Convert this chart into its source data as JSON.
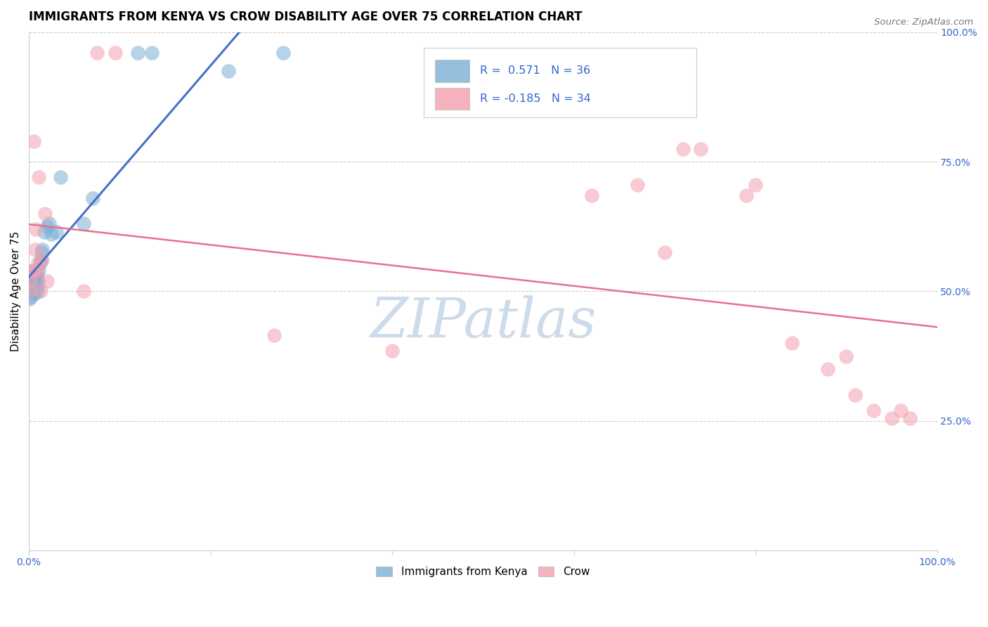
{
  "title": "IMMIGRANTS FROM KENYA VS CROW DISABILITY AGE OVER 75 CORRELATION CHART",
  "source": "Source: ZipAtlas.com",
  "ylabel": "Disability Age Over 75",
  "xlim": [
    0.0,
    1.0
  ],
  "ylim": [
    0.0,
    1.0
  ],
  "blue_color": "#7BAFD4",
  "pink_color": "#F4A0B0",
  "blue_line_color": "#4472C4",
  "pink_line_color": "#E87090",
  "tick_color": "#3366CC",
  "watermark_color": "#C8D8E8",
  "blue_x": [
    0.001,
    0.002,
    0.002,
    0.003,
    0.003,
    0.004,
    0.004,
    0.005,
    0.005,
    0.006,
    0.006,
    0.007,
    0.007,
    0.008,
    0.008,
    0.009,
    0.009,
    0.01,
    0.01,
    0.011,
    0.012,
    0.013,
    0.014,
    0.015,
    0.017,
    0.02,
    0.022,
    0.025,
    0.03,
    0.035,
    0.06,
    0.07,
    0.12,
    0.135,
    0.22,
    0.28
  ],
  "blue_y": [
    0.485,
    0.49,
    0.5,
    0.505,
    0.515,
    0.5,
    0.52,
    0.53,
    0.54,
    0.495,
    0.51,
    0.5,
    0.52,
    0.515,
    0.535,
    0.51,
    0.525,
    0.5,
    0.52,
    0.54,
    0.555,
    0.56,
    0.575,
    0.58,
    0.615,
    0.625,
    0.63,
    0.61,
    0.615,
    0.72,
    0.63,
    0.68,
    0.96,
    0.96,
    0.925,
    0.96
  ],
  "pink_x": [
    0.001,
    0.002,
    0.003,
    0.005,
    0.006,
    0.007,
    0.008,
    0.009,
    0.01,
    0.011,
    0.013,
    0.015,
    0.018,
    0.02,
    0.06,
    0.075,
    0.095,
    0.27,
    0.4,
    0.62,
    0.67,
    0.7,
    0.72,
    0.74,
    0.79,
    0.8,
    0.84,
    0.88,
    0.9,
    0.91,
    0.93,
    0.95,
    0.96,
    0.97
  ],
  "pink_y": [
    0.5,
    0.52,
    0.54,
    0.79,
    0.54,
    0.58,
    0.62,
    0.54,
    0.555,
    0.72,
    0.5,
    0.56,
    0.65,
    0.52,
    0.5,
    0.96,
    0.96,
    0.415,
    0.385,
    0.685,
    0.705,
    0.575,
    0.775,
    0.775,
    0.685,
    0.705,
    0.4,
    0.35,
    0.375,
    0.3,
    0.27,
    0.255,
    0.27,
    0.255
  ]
}
